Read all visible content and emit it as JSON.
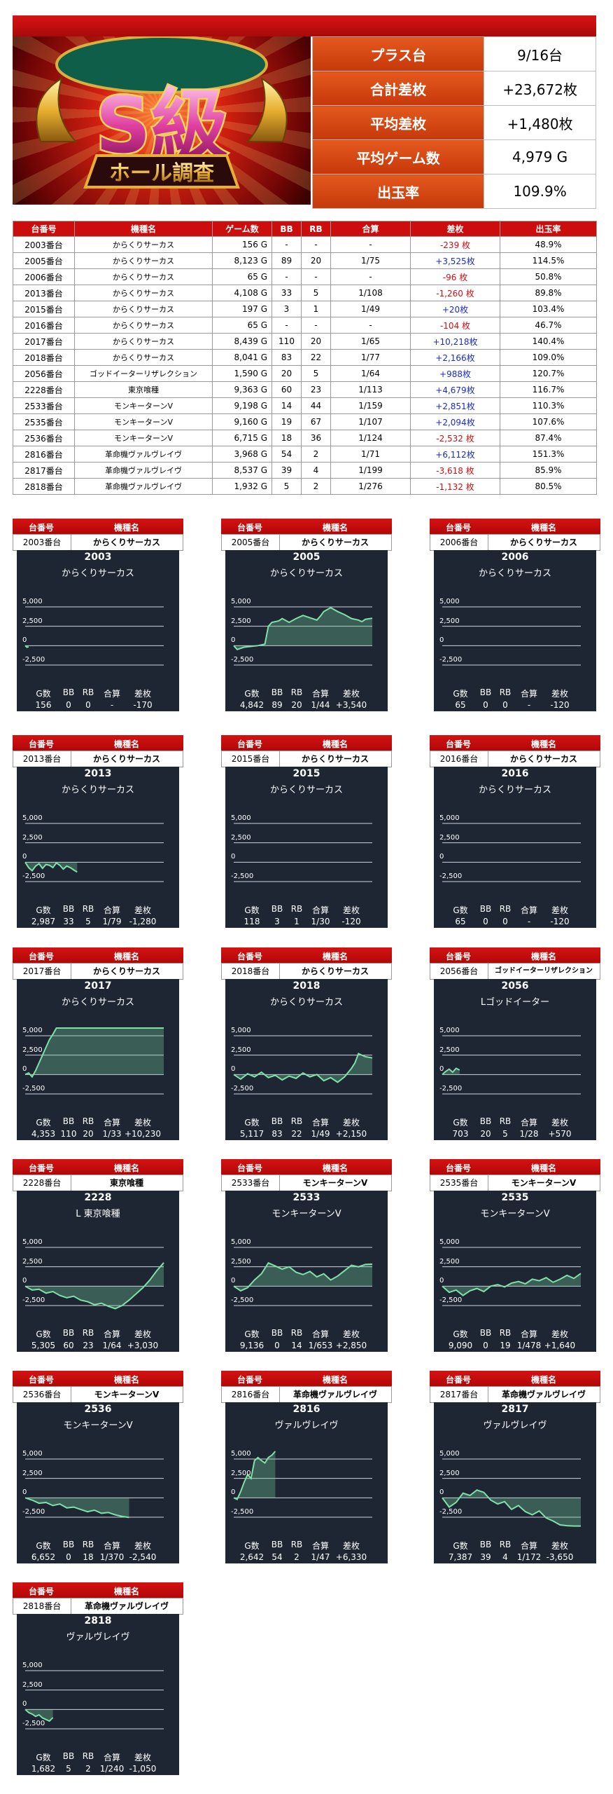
{
  "hero": {
    "logo_text": "S級",
    "banner_text": "ホール調査"
  },
  "summary": [
    {
      "label": "プラス台",
      "value": "9/16台"
    },
    {
      "label": "合計差枚",
      "value": "+23,672枚"
    },
    {
      "label": "平均差枚",
      "value": "+1,480枚"
    },
    {
      "label": "平均ゲーム数",
      "value": "4,979 G"
    },
    {
      "label": "出玉率",
      "value": "109.9%"
    }
  ],
  "table": {
    "headers": [
      "台番号",
      "機種名",
      "ゲーム数",
      "BB",
      "RB",
      "合算",
      "差枚",
      "出玉率"
    ],
    "rows": [
      [
        "2003番台",
        "からくりサーカス",
        "156 G",
        "-",
        "-",
        "-",
        "-239 枚",
        "48.9%"
      ],
      [
        "2005番台",
        "からくりサーカス",
        "8,123 G",
        "89",
        "20",
        "1/75",
        "+3,525枚",
        "114.5%"
      ],
      [
        "2006番台",
        "からくりサーカス",
        "65 G",
        "-",
        "-",
        "-",
        "-96 枚",
        "50.8%"
      ],
      [
        "2013番台",
        "からくりサーカス",
        "4,108 G",
        "33",
        "5",
        "1/108",
        "-1,260 枚",
        "89.8%"
      ],
      [
        "2015番台",
        "からくりサーカス",
        "197 G",
        "3",
        "1",
        "1/49",
        "+20枚",
        "103.4%"
      ],
      [
        "2016番台",
        "からくりサーカス",
        "65 G",
        "-",
        "-",
        "-",
        "-104 枚",
        "46.7%"
      ],
      [
        "2017番台",
        "からくりサーカス",
        "8,439 G",
        "110",
        "20",
        "1/65",
        "+10,218枚",
        "140.4%"
      ],
      [
        "2018番台",
        "からくりサーカス",
        "8,041 G",
        "83",
        "22",
        "1/77",
        "+2,166枚",
        "109.0%"
      ],
      [
        "2056番台",
        "ゴッドイーターリザレクション",
        "1,590 G",
        "20",
        "5",
        "1/64",
        "+988枚",
        "120.7%"
      ],
      [
        "2228番台",
        "東京喰種",
        "9,363 G",
        "60",
        "23",
        "1/113",
        "+4,679枚",
        "116.7%"
      ],
      [
        "2533番台",
        "モンキーターンV",
        "9,198 G",
        "14",
        "44",
        "1/159",
        "+2,851枚",
        "110.3%"
      ],
      [
        "2535番台",
        "モンキーターンV",
        "9,160 G",
        "19",
        "67",
        "1/107",
        "+2,094枚",
        "107.6%"
      ],
      [
        "2536番台",
        "モンキーターンV",
        "6,715 G",
        "18",
        "36",
        "1/124",
        "-2,532 枚",
        "87.4%"
      ],
      [
        "2816番台",
        "革命機ヴァルヴレイヴ",
        "3,968 G",
        "54",
        "2",
        "1/71",
        "+6,112枚",
        "151.3%"
      ],
      [
        "2817番台",
        "革命機ヴァルヴレイヴ",
        "8,537 G",
        "39",
        "4",
        "1/199",
        "-3,618 枚",
        "85.9%"
      ],
      [
        "2818番台",
        "革命機ヴァルヴレイヴ",
        "1,932 G",
        "5",
        "2",
        "1/276",
        "-1,132 枚",
        "80.5%"
      ]
    ]
  },
  "card_labels": {
    "col1": "台番号",
    "col2": "機種名",
    "g": "G数",
    "bb": "BB",
    "rb": "RB",
    "gassan": "合算",
    "samai": "差枚"
  },
  "y_ticks": [
    "5,000",
    "2,500",
    "0",
    "-2,500"
  ],
  "chart_data": [
    {
      "type": "area",
      "unit": "2003番台",
      "model": "からくりサーカス",
      "num": "2003",
      "title": "からくりサーカス",
      "g": "156",
      "bb": "0",
      "rb": "0",
      "gassan": "-",
      "samai": "-170",
      "ylim": [
        -3500,
        6000
      ],
      "x": [
        0,
        0.5,
        1
      ],
      "values": [
        0,
        -200,
        -170
      ]
    },
    {
      "type": "area",
      "unit": "2005番台",
      "model": "からくりサーカス",
      "num": "2005",
      "title": "からくりサーカス",
      "g": "4,842",
      "bb": "89",
      "rb": "20",
      "gassan": "1/44",
      "samai": "+3,540",
      "ylim": [
        -3500,
        6000
      ],
      "x": [
        0,
        1,
        3,
        5,
        7,
        9,
        10,
        11,
        13,
        14,
        16,
        18,
        20,
        22,
        24,
        25,
        26,
        28,
        30,
        32,
        34,
        36,
        37,
        38,
        40
      ],
      "values": [
        0,
        -500,
        -200,
        -100,
        0,
        200,
        2500,
        3000,
        3200,
        3500,
        3000,
        3500,
        3900,
        3600,
        3300,
        3800,
        4400,
        4900,
        4400,
        4000,
        3500,
        3300,
        3100,
        3400,
        3540
      ]
    },
    {
      "type": "area",
      "unit": "2006番台",
      "model": "からくりサーカス",
      "num": "2006",
      "title": "からくりサーカス",
      "g": "65",
      "bb": "0",
      "rb": "0",
      "gassan": "-",
      "samai": "-120",
      "ylim": [
        -3500,
        6000
      ],
      "x": [],
      "values": []
    },
    {
      "type": "area",
      "unit": "2013番台",
      "model": "からくりサーカス",
      "num": "2013",
      "title": "からくりサーカス",
      "g": "2,987",
      "bb": "33",
      "rb": "5",
      "gassan": "1/79",
      "samai": "-1,280",
      "ylim": [
        -3500,
        6000
      ],
      "x": [
        0,
        1,
        2,
        3,
        4,
        5,
        6,
        7,
        8,
        9,
        10,
        11,
        12,
        13,
        14,
        15
      ],
      "values": [
        0,
        -700,
        -1100,
        -500,
        -200,
        -800,
        -300,
        -400,
        -700,
        -100,
        -400,
        -900,
        -500,
        -700,
        -1000,
        -1280
      ]
    },
    {
      "type": "area",
      "unit": "2015番台",
      "model": "からくりサーカス",
      "num": "2015",
      "title": "からくりサーカス",
      "g": "118",
      "bb": "3",
      "rb": "1",
      "gassan": "1/30",
      "samai": "-120",
      "ylim": [
        -3500,
        6000
      ],
      "x": [],
      "values": []
    },
    {
      "type": "area",
      "unit": "2016番台",
      "model": "からくりサーカス",
      "num": "2016",
      "title": "からくりサーカス",
      "g": "65",
      "bb": "0",
      "rb": "0",
      "gassan": "-",
      "samai": "-120",
      "ylim": [
        -3500,
        6000
      ],
      "x": [],
      "values": []
    },
    {
      "type": "area",
      "unit": "2017番台",
      "model": "からくりサーカス",
      "num": "2017",
      "title": "からくりサーカス",
      "g": "4,353",
      "bb": "110",
      "rb": "20",
      "gassan": "1/33",
      "samai": "+10,230",
      "ylim": [
        -3500,
        6000
      ],
      "x": [
        0,
        1,
        2,
        3,
        4,
        5,
        6,
        7,
        8,
        9,
        40
      ],
      "values": [
        0,
        200,
        -300,
        500,
        1500,
        2500,
        3500,
        4500,
        5200,
        6000,
        6000
      ]
    },
    {
      "type": "area",
      "unit": "2018番台",
      "model": "からくりサーカス",
      "num": "2018",
      "title": "からくりサーカス",
      "g": "5,117",
      "bb": "83",
      "rb": "22",
      "gassan": "1/49",
      "samai": "+2,150",
      "ylim": [
        -3500,
        6000
      ],
      "x": [
        0,
        2,
        4,
        6,
        8,
        10,
        12,
        14,
        16,
        18,
        20,
        22,
        24,
        26,
        28,
        30,
        32,
        34,
        35,
        36,
        38,
        40
      ],
      "values": [
        0,
        -600,
        100,
        -300,
        300,
        -400,
        -100,
        -700,
        -200,
        -500,
        200,
        -300,
        0,
        -800,
        -400,
        -1000,
        -300,
        800,
        1500,
        2700,
        2300,
        2150
      ]
    },
    {
      "type": "area",
      "unit": "2056番台",
      "model": "ゴッドイーターリザレクション",
      "num": "2056",
      "title": "Lゴッドイーター",
      "g": "703",
      "bb": "20",
      "rb": "5",
      "gassan": "1/28",
      "samai": "+570",
      "ylim": [
        -3500,
        6000
      ],
      "x": [
        0,
        1,
        2,
        3,
        4,
        5
      ],
      "values": [
        0,
        400,
        700,
        300,
        800,
        570
      ]
    },
    {
      "type": "area",
      "unit": "2228番台",
      "model": "東京喰種",
      "num": "2228",
      "title": "L 東京喰種",
      "g": "5,305",
      "bb": "60",
      "rb": "23",
      "gassan": "1/64",
      "samai": "+3,030",
      "ylim": [
        -3500,
        6000
      ],
      "x": [
        0,
        2,
        4,
        6,
        8,
        10,
        12,
        14,
        16,
        18,
        20,
        22,
        24,
        26,
        28,
        30,
        32,
        34,
        36,
        38,
        40
      ],
      "values": [
        0,
        -500,
        -400,
        -900,
        -700,
        -1200,
        -1500,
        -1300,
        -1800,
        -2000,
        -2400,
        -2200,
        -2600,
        -2900,
        -2500,
        -1800,
        -1000,
        -200,
        800,
        2000,
        3030
      ]
    },
    {
      "type": "area",
      "unit": "2533番台",
      "model": "モンキーターンV",
      "num": "2533",
      "title": "モンキーターンV",
      "g": "9,136",
      "bb": "0",
      "rb": "14",
      "gassan": "1/653",
      "samai": "+2,850",
      "ylim": [
        -3500,
        6000
      ],
      "x": [
        0,
        2,
        4,
        6,
        8,
        10,
        12,
        14,
        16,
        18,
        20,
        22,
        24,
        26,
        28,
        30,
        32,
        34,
        36,
        38,
        40
      ],
      "values": [
        0,
        -600,
        -200,
        800,
        1600,
        3000,
        2600,
        2200,
        2500,
        1800,
        1500,
        1900,
        1200,
        1600,
        800,
        1300,
        2000,
        2700,
        2500,
        2800,
        2850
      ]
    },
    {
      "type": "area",
      "unit": "2535番台",
      "model": "モンキーターンV",
      "num": "2535",
      "title": "モンキーターンV",
      "g": "9,090",
      "bb": "0",
      "rb": "19",
      "gassan": "1/478",
      "samai": "+1,640",
      "ylim": [
        -3500,
        6000
      ],
      "x": [
        0,
        2,
        4,
        6,
        8,
        10,
        12,
        14,
        16,
        18,
        20,
        22,
        24,
        26,
        28,
        30,
        32,
        34,
        36,
        38,
        40
      ],
      "values": [
        0,
        -800,
        -500,
        -1200,
        -600,
        -300,
        -700,
        0,
        200,
        -100,
        400,
        600,
        300,
        900,
        700,
        1100,
        500,
        900,
        1400,
        1000,
        1640
      ]
    },
    {
      "type": "area",
      "unit": "2536番台",
      "model": "モンキーターンV",
      "num": "2536",
      "title": "モンキーターンV",
      "g": "6,652",
      "bb": "0",
      "rb": "18",
      "gassan": "1/370",
      "samai": "-2,540",
      "ylim": [
        -3500,
        6000
      ],
      "x": [
        0,
        2,
        4,
        6,
        8,
        10,
        12,
        14,
        16,
        18,
        20,
        22,
        24,
        26,
        28,
        30
      ],
      "values": [
        0,
        -300,
        -700,
        -600,
        -1000,
        -800,
        -1300,
        -1200,
        -1500,
        -1800,
        -1600,
        -2000,
        -1900,
        -2200,
        -2400,
        -2540
      ]
    },
    {
      "type": "area",
      "unit": "2816番台",
      "model": "革命機ヴァルヴレイヴ",
      "num": "2816",
      "title": "ヴァルヴレイヴ",
      "g": "2,642",
      "bb": "54",
      "rb": "2",
      "gassan": "1/47",
      "samai": "+6,330",
      "ylim": [
        -3500,
        6000
      ],
      "x": [
        0,
        1,
        2,
        3,
        4,
        5,
        6,
        7,
        8,
        9,
        10,
        11,
        12
      ],
      "values": [
        0,
        -200,
        800,
        2000,
        3000,
        2500,
        4800,
        5200,
        4800,
        4500,
        5200,
        5500,
        6000
      ]
    },
    {
      "type": "area",
      "unit": "2817番台",
      "model": "革命機ヴァルヴレイヴ",
      "num": "2817",
      "title": "ヴァルヴレイヴ",
      "g": "7,387",
      "bb": "39",
      "rb": "4",
      "gassan": "1/172",
      "samai": "-3,650",
      "ylim": [
        -3500,
        6000
      ],
      "x": [
        0,
        2,
        4,
        6,
        8,
        10,
        12,
        14,
        16,
        18,
        20,
        22,
        24,
        26,
        28,
        30,
        32,
        34,
        36,
        38,
        40
      ],
      "values": [
        0,
        -1200,
        -600,
        600,
        300,
        1000,
        700,
        -300,
        -800,
        -500,
        -1500,
        -1000,
        -1800,
        -2200,
        -1700,
        -2600,
        -3000,
        -3500,
        -3600,
        -3650,
        -3650
      ]
    },
    {
      "type": "area",
      "unit": "2818番台",
      "model": "革命機ヴァルヴレイヴ",
      "num": "2818",
      "title": "ヴァルヴレイヴ",
      "g": "1,682",
      "bb": "5",
      "rb": "2",
      "gassan": "1/240",
      "samai": "-1,050",
      "ylim": [
        -3500,
        6000
      ],
      "x": [
        0,
        1,
        2,
        3,
        4,
        5,
        6,
        7,
        8
      ],
      "values": [
        0,
        -400,
        -600,
        -900,
        -700,
        -1100,
        -1300,
        -1500,
        -1050
      ]
    }
  ]
}
